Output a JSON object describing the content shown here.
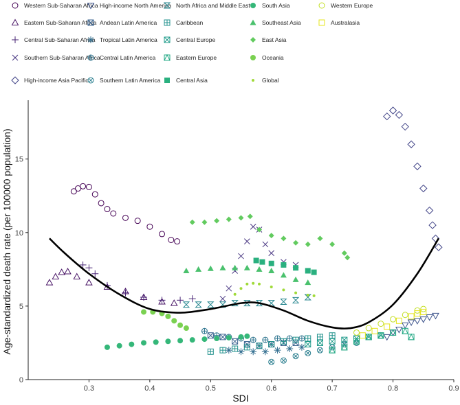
{
  "chart_data": {
    "type": "scatter",
    "xlabel": "SDI",
    "ylabel": "Age-standardized death rate (per 100000 population)",
    "xlim": [
      0.2,
      0.9
    ],
    "ylim": [
      0,
      19
    ],
    "x_ticks": [
      "0.3",
      "0.4",
      "0.5",
      "0.6",
      "0.7",
      "0.8",
      "0.9"
    ],
    "y_ticks": [
      "0",
      "5",
      "10",
      "15"
    ],
    "grid": false,
    "legend_position": "top",
    "series": [
      {
        "name": "Western Sub-Saharan Africa",
        "color": "#440154",
        "marker": "circle-open",
        "points": [
          [
            0.275,
            12.8
          ],
          [
            0.282,
            13.0
          ],
          [
            0.29,
            13.15
          ],
          [
            0.3,
            13.1
          ],
          [
            0.31,
            12.6
          ],
          [
            0.32,
            12.0
          ],
          [
            0.33,
            11.6
          ],
          [
            0.34,
            11.3
          ],
          [
            0.36,
            11.0
          ],
          [
            0.38,
            10.8
          ],
          [
            0.4,
            10.4
          ],
          [
            0.42,
            9.9
          ],
          [
            0.435,
            9.5
          ],
          [
            0.445,
            9.4
          ]
        ]
      },
      {
        "name": "Eastern Sub-Saharan Africa",
        "color": "#471365",
        "marker": "triangle-open",
        "points": [
          [
            0.235,
            6.6
          ],
          [
            0.245,
            7.0
          ],
          [
            0.255,
            7.3
          ],
          [
            0.265,
            7.35
          ],
          [
            0.28,
            7.0
          ],
          [
            0.3,
            6.6
          ],
          [
            0.33,
            6.3
          ],
          [
            0.36,
            6.0
          ],
          [
            0.39,
            5.6
          ],
          [
            0.42,
            5.3
          ],
          [
            0.44,
            5.2
          ]
        ]
      },
      {
        "name": "Central Sub-Saharan Africa",
        "color": "#482475",
        "marker": "plus",
        "points": [
          [
            0.29,
            7.8
          ],
          [
            0.3,
            7.6
          ],
          [
            0.31,
            7.2
          ],
          [
            0.33,
            6.4
          ],
          [
            0.36,
            5.9
          ],
          [
            0.39,
            5.6
          ],
          [
            0.42,
            5.4
          ],
          [
            0.45,
            5.4
          ],
          [
            0.47,
            5.5
          ]
        ]
      },
      {
        "name": "Southern Sub-Saharan Africa",
        "color": "#463480",
        "marker": "x",
        "points": [
          [
            0.52,
            5.5
          ],
          [
            0.53,
            6.2
          ],
          [
            0.54,
            7.4
          ],
          [
            0.55,
            8.4
          ],
          [
            0.56,
            9.4
          ],
          [
            0.57,
            10.4
          ],
          [
            0.58,
            10.2
          ],
          [
            0.59,
            9.2
          ],
          [
            0.6,
            8.6
          ],
          [
            0.62,
            8.0
          ],
          [
            0.64,
            7.8
          ]
        ]
      },
      {
        "name": "High-income Asia Pacific",
        "color": "#414487",
        "marker": "diamond-open",
        "points": [
          [
            0.79,
            17.9
          ],
          [
            0.8,
            18.3
          ],
          [
            0.81,
            18.0
          ],
          [
            0.82,
            17.2
          ],
          [
            0.83,
            16.0
          ],
          [
            0.84,
            14.5
          ],
          [
            0.85,
            13.0
          ],
          [
            0.86,
            11.5
          ],
          [
            0.865,
            10.5
          ],
          [
            0.87,
            9.6
          ],
          [
            0.875,
            9.0
          ]
        ]
      },
      {
        "name": "High-income North America",
        "color": "#3b528b",
        "marker": "triangle-down-open",
        "points": [
          [
            0.79,
            2.9
          ],
          [
            0.8,
            3.2
          ],
          [
            0.81,
            3.4
          ],
          [
            0.82,
            3.7
          ],
          [
            0.83,
            3.9
          ],
          [
            0.84,
            4.0
          ],
          [
            0.85,
            4.1
          ],
          [
            0.86,
            4.25
          ],
          [
            0.87,
            4.35
          ]
        ]
      },
      {
        "name": "Andean Latin America",
        "color": "#355f8d",
        "marker": "square-x",
        "points": [
          [
            0.5,
            3.0
          ],
          [
            0.52,
            2.9
          ],
          [
            0.54,
            2.6
          ],
          [
            0.56,
            2.4
          ],
          [
            0.58,
            2.3
          ],
          [
            0.6,
            2.4
          ],
          [
            0.62,
            2.5
          ],
          [
            0.64,
            2.5
          ]
        ]
      },
      {
        "name": "Tropical Latin America",
        "color": "#2f6c8e",
        "marker": "asterisk",
        "points": [
          [
            0.53,
            2.0
          ],
          [
            0.55,
            1.9
          ],
          [
            0.57,
            1.9
          ],
          [
            0.59,
            1.9
          ],
          [
            0.61,
            2.0
          ],
          [
            0.63,
            2.1
          ],
          [
            0.65,
            2.2
          ]
        ]
      },
      {
        "name": "Central Latin America",
        "color": "#2c738e",
        "marker": "circle-plus",
        "points": [
          [
            0.49,
            3.3
          ],
          [
            0.51,
            3.0
          ],
          [
            0.53,
            2.9
          ],
          [
            0.55,
            2.8
          ],
          [
            0.57,
            2.7
          ],
          [
            0.59,
            2.7
          ],
          [
            0.61,
            2.8
          ],
          [
            0.63,
            2.8
          ],
          [
            0.65,
            2.8
          ]
        ]
      },
      {
        "name": "Southern Latin America",
        "color": "#287d8e",
        "marker": "circle-cross",
        "points": [
          [
            0.6,
            1.2
          ],
          [
            0.62,
            1.3
          ],
          [
            0.64,
            1.6
          ],
          [
            0.66,
            1.8
          ],
          [
            0.68,
            2.0
          ],
          [
            0.7,
            2.2
          ],
          [
            0.72,
            2.4
          ],
          [
            0.74,
            2.5
          ]
        ]
      },
      {
        "name": "North Africa and Middle East",
        "color": "#25858e",
        "marker": "bowtie",
        "points": [
          [
            0.46,
            5.1
          ],
          [
            0.48,
            5.1
          ],
          [
            0.5,
            5.1
          ],
          [
            0.52,
            5.1
          ],
          [
            0.54,
            5.2
          ],
          [
            0.56,
            5.2
          ],
          [
            0.58,
            5.2
          ],
          [
            0.6,
            5.2
          ],
          [
            0.62,
            5.3
          ],
          [
            0.64,
            5.4
          ],
          [
            0.66,
            5.6
          ]
        ]
      },
      {
        "name": "Caribbean",
        "color": "#21918c",
        "marker": "square-plus",
        "points": [
          [
            0.5,
            1.9
          ],
          [
            0.52,
            2.0
          ],
          [
            0.54,
            2.1
          ],
          [
            0.56,
            2.2
          ],
          [
            0.58,
            2.3
          ],
          [
            0.6,
            2.4
          ],
          [
            0.62,
            2.6
          ],
          [
            0.64,
            2.7
          ],
          [
            0.66,
            2.8
          ],
          [
            0.68,
            2.9
          ],
          [
            0.7,
            3.0
          ]
        ]
      },
      {
        "name": "Central Europe",
        "color": "#1e9b8a",
        "marker": "square-x",
        "points": [
          [
            0.66,
            2.4
          ],
          [
            0.68,
            2.5
          ],
          [
            0.7,
            2.6
          ],
          [
            0.72,
            2.7
          ],
          [
            0.74,
            2.8
          ],
          [
            0.76,
            2.9
          ],
          [
            0.78,
            3.0
          ]
        ]
      },
      {
        "name": "Eastern Europe",
        "color": "#22a884",
        "marker": "square-triangle",
        "points": [
          [
            0.7,
            2.0
          ],
          [
            0.72,
            2.2
          ],
          [
            0.74,
            2.6
          ],
          [
            0.76,
            2.9
          ],
          [
            0.78,
            3.0
          ],
          [
            0.8,
            3.2
          ],
          [
            0.82,
            3.3
          ],
          [
            0.83,
            2.9
          ]
        ]
      },
      {
        "name": "Central Asia",
        "color": "#2ab07f",
        "marker": "square",
        "points": [
          [
            0.575,
            8.1
          ],
          [
            0.585,
            8.0
          ],
          [
            0.6,
            7.9
          ],
          [
            0.62,
            7.8
          ],
          [
            0.64,
            7.6
          ],
          [
            0.66,
            7.4
          ],
          [
            0.67,
            7.3
          ]
        ]
      },
      {
        "name": "South Asia",
        "color": "#35b779",
        "marker": "circle",
        "points": [
          [
            0.33,
            2.2
          ],
          [
            0.35,
            2.3
          ],
          [
            0.37,
            2.4
          ],
          [
            0.39,
            2.5
          ],
          [
            0.41,
            2.55
          ],
          [
            0.43,
            2.6
          ],
          [
            0.45,
            2.65
          ],
          [
            0.47,
            2.7
          ],
          [
            0.49,
            2.75
          ],
          [
            0.51,
            2.8
          ],
          [
            0.53,
            2.85
          ],
          [
            0.55,
            2.9
          ],
          [
            0.56,
            2.95
          ]
        ]
      },
      {
        "name": "Southeast Asia",
        "color": "#4ac16d",
        "marker": "triangle",
        "points": [
          [
            0.46,
            7.4
          ],
          [
            0.48,
            7.5
          ],
          [
            0.5,
            7.55
          ],
          [
            0.52,
            7.6
          ],
          [
            0.54,
            7.6
          ],
          [
            0.56,
            7.6
          ],
          [
            0.58,
            7.5
          ],
          [
            0.6,
            7.4
          ],
          [
            0.62,
            7.1
          ],
          [
            0.64,
            6.8
          ],
          [
            0.66,
            6.6
          ]
        ]
      },
      {
        "name": "East Asia",
        "color": "#62cb5f",
        "marker": "diamond",
        "points": [
          [
            0.47,
            10.7
          ],
          [
            0.49,
            10.7
          ],
          [
            0.51,
            10.8
          ],
          [
            0.53,
            10.9
          ],
          [
            0.55,
            11.0
          ],
          [
            0.565,
            11.1
          ],
          [
            0.58,
            10.2
          ],
          [
            0.6,
            9.8
          ],
          [
            0.62,
            9.6
          ],
          [
            0.64,
            9.3
          ],
          [
            0.66,
            9.2
          ],
          [
            0.68,
            9.6
          ],
          [
            0.7,
            9.2
          ],
          [
            0.72,
            8.6
          ],
          [
            0.725,
            8.3
          ]
        ]
      },
      {
        "name": "Oceania",
        "color": "#7ad151",
        "marker": "circle",
        "points": [
          [
            0.39,
            4.6
          ],
          [
            0.405,
            4.6
          ],
          [
            0.42,
            4.5
          ],
          [
            0.43,
            4.3
          ],
          [
            0.44,
            4.0
          ],
          [
            0.45,
            3.7
          ],
          [
            0.46,
            3.5
          ]
        ]
      },
      {
        "name": "Global",
        "color": "#a0da39",
        "marker": "dot",
        "points": [
          [
            0.54,
            5.8
          ],
          [
            0.55,
            6.2
          ],
          [
            0.56,
            6.5
          ],
          [
            0.57,
            6.55
          ],
          [
            0.58,
            6.5
          ],
          [
            0.6,
            6.3
          ],
          [
            0.62,
            6.1
          ],
          [
            0.64,
            5.9
          ],
          [
            0.66,
            5.75
          ],
          [
            0.67,
            5.7
          ]
        ]
      },
      {
        "name": "Western Europe",
        "color": "#c2df23",
        "marker": "circle-open",
        "points": [
          [
            0.74,
            3.2
          ],
          [
            0.76,
            3.5
          ],
          [
            0.78,
            3.8
          ],
          [
            0.8,
            4.1
          ],
          [
            0.82,
            4.4
          ],
          [
            0.84,
            4.7
          ],
          [
            0.85,
            4.8
          ]
        ]
      },
      {
        "name": "Australasia",
        "color": "#e5e419",
        "marker": "square-open",
        "points": [
          [
            0.75,
            3.0
          ],
          [
            0.77,
            3.3
          ],
          [
            0.79,
            3.6
          ],
          [
            0.81,
            4.0
          ],
          [
            0.83,
            4.3
          ],
          [
            0.84,
            4.5
          ],
          [
            0.85,
            4.6
          ]
        ]
      }
    ],
    "trend_line": [
      [
        0.235,
        9.6
      ],
      [
        0.26,
        8.6
      ],
      [
        0.3,
        7.2
      ],
      [
        0.35,
        5.8
      ],
      [
        0.4,
        4.8
      ],
      [
        0.45,
        4.55
      ],
      [
        0.5,
        4.8
      ],
      [
        0.55,
        5.2
      ],
      [
        0.58,
        5.2
      ],
      [
        0.62,
        4.7
      ],
      [
        0.66,
        4.0
      ],
      [
        0.7,
        3.55
      ],
      [
        0.73,
        3.5
      ],
      [
        0.76,
        3.9
      ],
      [
        0.8,
        5.1
      ],
      [
        0.84,
        7.2
      ],
      [
        0.875,
        9.6
      ]
    ]
  }
}
